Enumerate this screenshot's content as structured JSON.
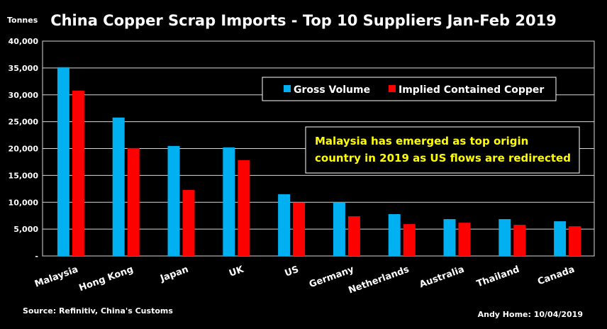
{
  "chart_data": {
    "type": "bar",
    "title": "China Copper Scrap Imports - Top 10 Suppliers Jan-Feb 2019",
    "ylabel": "Tonnes",
    "xlabel": "",
    "ylim": [
      0,
      40000
    ],
    "yticks": [
      0,
      5000,
      10000,
      15000,
      20000,
      25000,
      30000,
      35000,
      40000
    ],
    "ytick_labels": [
      "-",
      "5,000",
      "10,000",
      "15,000",
      "20,000",
      "25,000",
      "30,000",
      "35,000",
      "40,000"
    ],
    "grid": true,
    "legend_position": "top-right",
    "categories": [
      "Malaysia",
      "Hong Kong",
      "Japan",
      "UK",
      "US",
      "Germany",
      "Netherlands",
      "Australia",
      "Thailand",
      "Canada"
    ],
    "series": [
      {
        "name": "Gross Volume",
        "color": "#00b0f0",
        "values": [
          35150,
          25770,
          20480,
          20220,
          11500,
          10000,
          7790,
          6860,
          6860,
          6460
        ]
      },
      {
        "name": "Implied Contained Copper",
        "color": "#ff0000",
        "values": [
          30790,
          20090,
          12290,
          17840,
          9960,
          7390,
          5930,
          6190,
          5800,
          5530
        ]
      }
    ],
    "annotation": [
      "Malaysia has emerged as top origin",
      "country in 2019 as US flows are redirected"
    ],
    "annotation_color": "#ffff00",
    "source": "Source: Refinitiv, China's Customs",
    "credit": "Andy Home: 10/04/2019"
  }
}
